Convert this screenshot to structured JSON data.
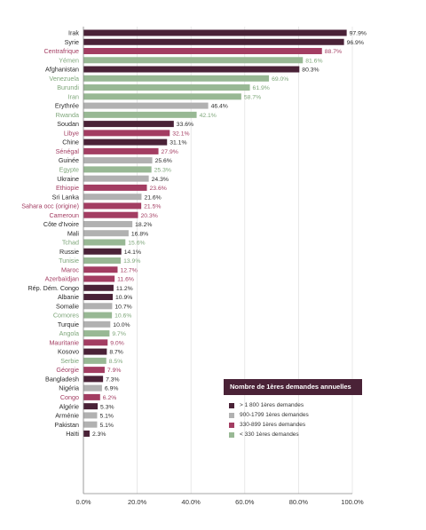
{
  "chart_data": {
    "type": "bar",
    "orientation": "horizontal",
    "title": "",
    "xlabel": "",
    "ylabel": "",
    "xlim": [
      0,
      100
    ],
    "x_ticks": [
      "0.0%",
      "20.0%",
      "40.0%",
      "60.0%",
      "80.0%",
      "100.0%"
    ],
    "grid": "vertical",
    "legend": {
      "position": "bottom-right",
      "title": "Nombre de 1ères demandes annuelles",
      "entries": [
        {
          "label": "> 1 800 1ères demandes",
          "color": "#4a2237"
        },
        {
          "label": "900-1799 1ères demandes",
          "color": "#b1b1b1"
        },
        {
          "label": "330-899 1ères demandes",
          "color": "#a33d62"
        },
        {
          "label": "< 330 1ères demandes",
          "color": "#98b894"
        }
      ]
    },
    "categories": [
      "Irak",
      "Syrie",
      "Centrafrique",
      "Yémen",
      "Afghanistan",
      "Venezuela",
      "Burundi",
      "Iran",
      "Erythrée",
      "Rwanda",
      "Soudan",
      "Libye",
      "Chine",
      "Sénégal",
      "Guinée",
      "Egypte",
      "Ukraine",
      "Ethiopie",
      "Sri Lanka",
      "Sahara occ (origine)",
      "Cameroun",
      "Côte d'Ivoire",
      "Mali",
      "Tchad",
      "Russie",
      "Tunisie",
      "Maroc",
      "Azerbaïdjan",
      "Rép. Dém. Congo",
      "Albanie",
      "Somalie",
      "Comores",
      "Turquie",
      "Angola",
      "Mauritanie",
      "Kosovo",
      "Serbie",
      "Géorgie",
      "Bangladesh",
      "Nigéria",
      "Congo",
      "Algérie",
      "Arménie",
      "Pakistan",
      "Haïti"
    ],
    "values": [
      97.9,
      96.9,
      88.7,
      81.6,
      80.3,
      69.0,
      61.9,
      58.7,
      46.4,
      42.1,
      33.6,
      32.1,
      31.1,
      27.9,
      25.6,
      25.3,
      24.3,
      23.6,
      21.6,
      21.5,
      20.3,
      18.2,
      16.8,
      15.6,
      14.1,
      13.9,
      12.7,
      11.6,
      11.2,
      10.9,
      10.7,
      10.6,
      10.0,
      9.7,
      9.0,
      8.7,
      8.5,
      7.9,
      7.3,
      6.9,
      6.2,
      5.3,
      5.1,
      5.1,
      2.3
    ],
    "value_labels": [
      "97.9%",
      "96.9%",
      "88.7%",
      "81.6%",
      "80.3%",
      "69.0%",
      "61.9%",
      "58.7%",
      "46.4%",
      "42.1%",
      "33.6%",
      "32.1%",
      "31.1%",
      "27.9%",
      "25.6%",
      "25.3%",
      "24.3%",
      "23.6%",
      "21.6%",
      "21.5%",
      "20.3%",
      "18.2%",
      "16.8%",
      "15.6%",
      "14.1%",
      "13.9%",
      "12.7%",
      "11.6%",
      "11.2%",
      "10.9%",
      "10.7%",
      "10.6%",
      "10.0%",
      "9.7%",
      "9.0%",
      "8.7%",
      "8.5%",
      "7.9%",
      "7.3%",
      "6.9%",
      "6.2%",
      "5.3%",
      "5.1%",
      "5.1%",
      "2.3%"
    ],
    "groups": [
      "g1",
      "g1",
      "g3",
      "g4",
      "g1",
      "g4",
      "g4",
      "g4",
      "g2",
      "g4",
      "g1",
      "g3",
      "g1",
      "g3",
      "g2",
      "g4",
      "g2",
      "g3",
      "g2",
      "g3",
      "g3",
      "g2",
      "g2",
      "g4",
      "g1",
      "g4",
      "g3",
      "g3",
      "g1",
      "g1",
      "g2",
      "g4",
      "g2",
      "g4",
      "g3",
      "g1",
      "g4",
      "g3",
      "g1",
      "g2",
      "g3",
      "g1",
      "g2",
      "g2",
      "g1"
    ],
    "group_colors": {
      "g1": "#4a2237",
      "g2": "#b1b1b1",
      "g3": "#a33d62",
      "g4": "#98b894"
    },
    "label_colors": {
      "g1": "#2a2a2a",
      "g2": "#2a2a2a",
      "g3": "#a33d62",
      "g4": "#7ea67a"
    }
  }
}
